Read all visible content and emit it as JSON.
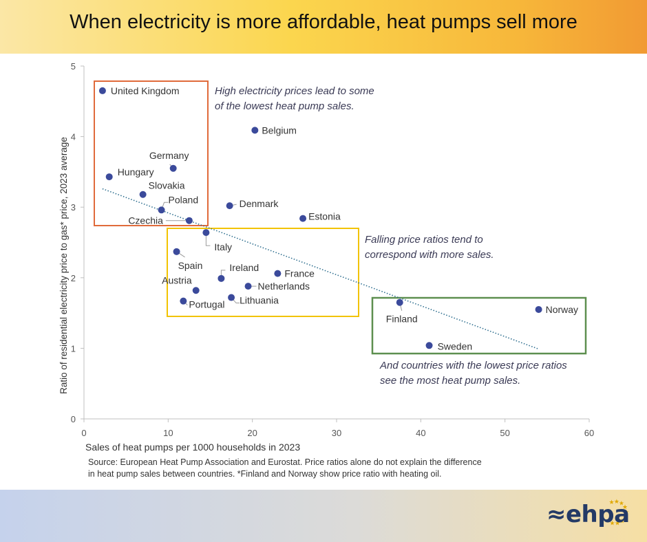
{
  "header": {
    "title": "When electricity is more affordable, heat pumps sell more"
  },
  "chart_data": {
    "type": "scatter",
    "xlabel": "Sales of heat pumps per 1000 households in 2023",
    "ylabel": "Ratio of residential electricity price to gas* price, 2023 average",
    "xlim": [
      0,
      60
    ],
    "ylim": [
      0,
      5
    ],
    "xticks": [
      "0",
      "10",
      "20",
      "30",
      "40",
      "50",
      "60"
    ],
    "yticks": [
      "0",
      "1",
      "2",
      "3",
      "4",
      "5"
    ],
    "grid": false,
    "points": [
      {
        "name": "United Kingdom",
        "x": 2.2,
        "y": 4.65
      },
      {
        "name": "Hungary",
        "x": 3.0,
        "y": 3.43
      },
      {
        "name": "Slovakia",
        "x": 7.0,
        "y": 3.18
      },
      {
        "name": "Poland",
        "x": 9.2,
        "y": 2.96
      },
      {
        "name": "Germany",
        "x": 10.6,
        "y": 3.55
      },
      {
        "name": "Czechia",
        "x": 12.5,
        "y": 2.81
      },
      {
        "name": "Italy",
        "x": 14.5,
        "y": 2.64
      },
      {
        "name": "Spain",
        "x": 11.0,
        "y": 2.37
      },
      {
        "name": "Austria",
        "x": 13.3,
        "y": 1.82
      },
      {
        "name": "Portugal",
        "x": 11.8,
        "y": 1.67
      },
      {
        "name": "Ireland",
        "x": 16.3,
        "y": 1.99
      },
      {
        "name": "Lithuania",
        "x": 17.5,
        "y": 1.72
      },
      {
        "name": "Netherlands",
        "x": 19.5,
        "y": 1.88
      },
      {
        "name": "Belgium",
        "x": 20.3,
        "y": 4.09
      },
      {
        "name": "Denmark",
        "x": 17.3,
        "y": 3.02
      },
      {
        "name": "France",
        "x": 23.0,
        "y": 2.06
      },
      {
        "name": "Estonia",
        "x": 26.0,
        "y": 2.84
      },
      {
        "name": "Finland",
        "x": 37.5,
        "y": 1.65
      },
      {
        "name": "Sweden",
        "x": 41.0,
        "y": 1.04
      },
      {
        "name": "Norway",
        "x": 54.0,
        "y": 1.55
      }
    ],
    "trendline": {
      "x": [
        2.2,
        54.0
      ],
      "y": [
        3.26,
        0.99
      ]
    },
    "annotations": [
      {
        "text": "High electricity prices lead to some of the lowest heat pump sales."
      },
      {
        "text": "Falling price ratios tend to correspond with more sales."
      },
      {
        "text": "And countries with the lowest price ratios see the most heat pump sales."
      }
    ],
    "colors": {
      "points": "#3b4a9b",
      "trend": "#2f6f8f",
      "box_high": "#e06a3a",
      "box_mid": "#f2c300",
      "box_low": "#5d8f4f"
    }
  },
  "annotations": {
    "high_1": "High electricity prices lead to some",
    "high_2": "of the lowest heat pump sales.",
    "mid_1": "Falling price ratios tend to",
    "mid_2": "correspond with more sales.",
    "low_1": "And countries with the lowest price ratios",
    "low_2": "see the most heat pump sales."
  },
  "source": {
    "line1": "Source: European Heat Pump Association and Eurostat. Price ratios alone do not explain the difference",
    "line2": "in heat pump sales between countries. *Finland and Norway show price ratio with heating oil."
  },
  "logo": {
    "text": "≈ehpa",
    "icon": "eu-stars-icon"
  }
}
